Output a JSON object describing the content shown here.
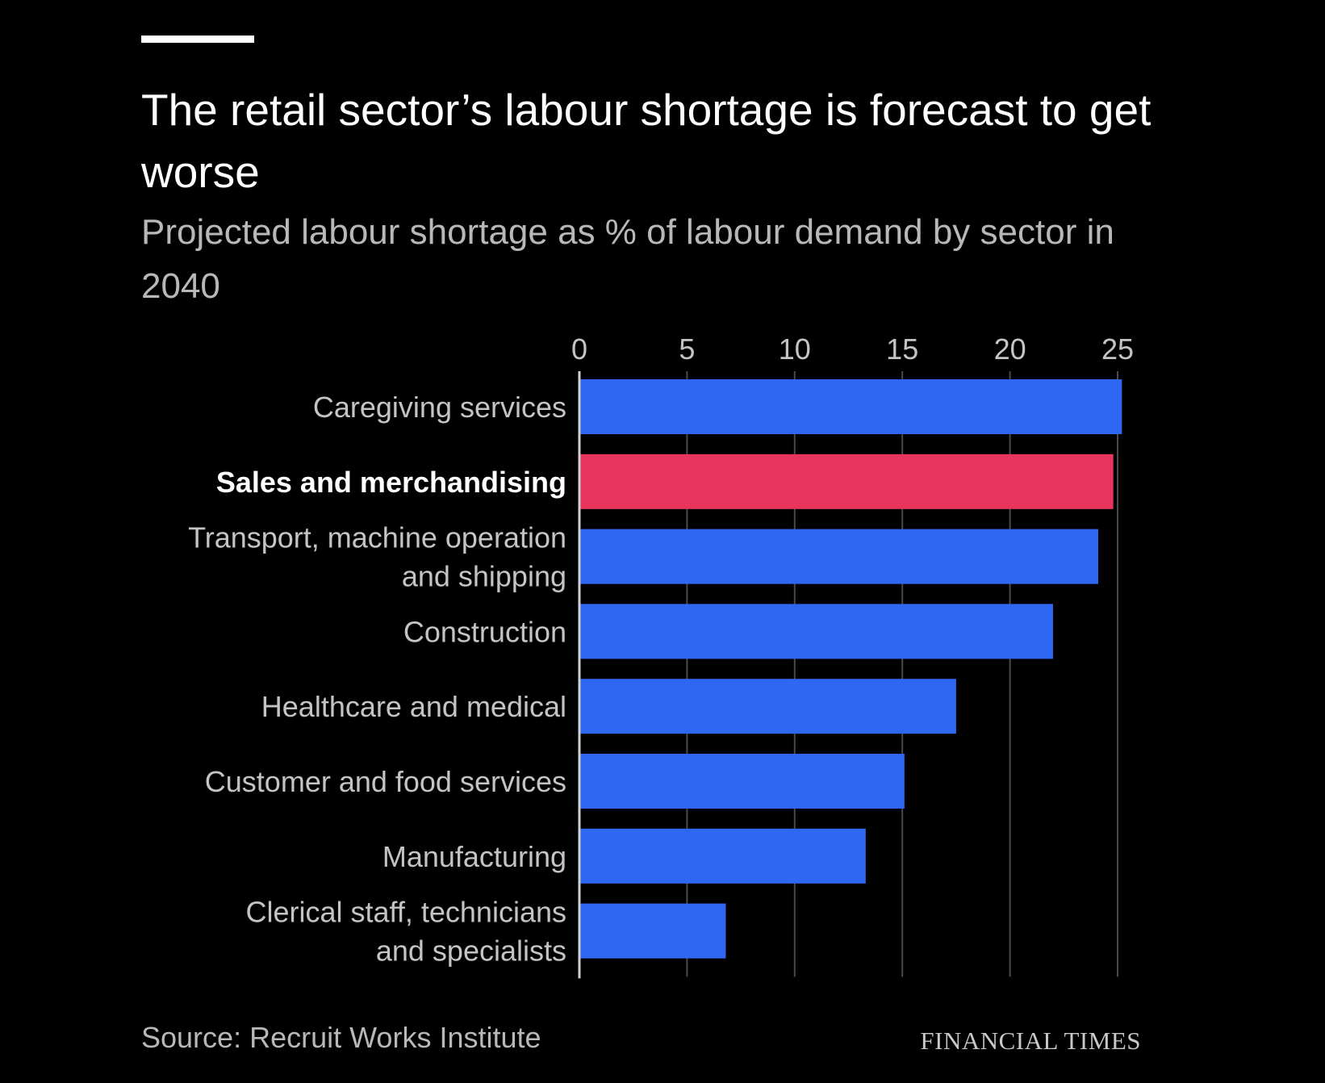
{
  "chart_data": {
    "type": "bar",
    "orientation": "horizontal",
    "title": "The retail sector’s labour shortage is forecast to get worse",
    "subtitle": "Projected labour shortage as % of labour demand by sector in 2040",
    "categories": [
      [
        "Caregiving services"
      ],
      [
        "Sales and merchandising"
      ],
      [
        "Transport, machine operation",
        "and shipping"
      ],
      [
        "Construction"
      ],
      [
        "Healthcare and medical"
      ],
      [
        "Customer and food services"
      ],
      [
        "Manufacturing"
      ],
      [
        "Clerical staff, technicians",
        "and specialists"
      ]
    ],
    "values": [
      25.2,
      24.8,
      24.1,
      22.0,
      17.5,
      15.1,
      13.3,
      6.8
    ],
    "highlight_index": 1,
    "xlim": [
      0,
      25
    ],
    "xticks": [
      "0",
      "5",
      "10",
      "15",
      "20",
      "25"
    ],
    "xtick_values": [
      0,
      5,
      10,
      15,
      20,
      25
    ],
    "grid": true,
    "xlabel": "",
    "ylabel": "",
    "colors": {
      "bar": "#2f67f2",
      "highlight": "#e8355d",
      "grid": "#4a4a4a",
      "axis": "#cfcfcf",
      "label": "#c4c4c4",
      "highlight_label": "#ffffff"
    }
  },
  "footer": {
    "source": "Source: Recruit Works Institute",
    "brand": "FINANCIAL TIMES"
  }
}
